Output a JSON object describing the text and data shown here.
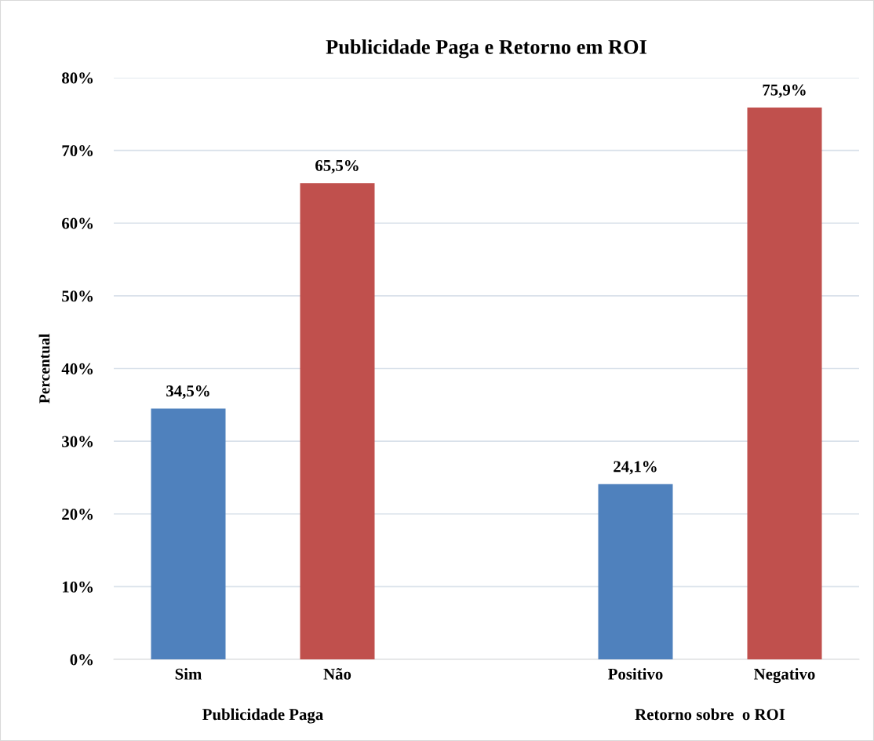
{
  "chart_data": {
    "type": "bar",
    "title": "Publicidade Paga e Retorno em ROI",
    "ylabel": "Percentual",
    "categories": [
      "Sim",
      "Não",
      null,
      "Positivo",
      "Negativo"
    ],
    "values": [
      34.5,
      65.5,
      null,
      24.1,
      75.9
    ],
    "colors": [
      "#4f81bd",
      "#c0504d",
      null,
      "#4f81bd",
      "#c0504d"
    ],
    "value_labels": [
      "34,5%",
      "65,5%",
      null,
      "24,1%",
      "75,9%"
    ],
    "annotations": [
      "Publicidade Paga",
      "Retorno sobre  o ROI"
    ],
    "ylim": [
      0,
      80
    ],
    "yticks": [
      {
        "value": 0,
        "label": "0%"
      },
      {
        "value": 10,
        "label": "10%"
      },
      {
        "value": 20,
        "label": "20%"
      },
      {
        "value": 30,
        "label": "30%"
      },
      {
        "value": 40,
        "label": "40%"
      },
      {
        "value": 50,
        "label": "50%"
      },
      {
        "value": 60,
        "label": "60%"
      },
      {
        "value": 70,
        "label": "70%"
      },
      {
        "value": 80,
        "label": "80%"
      }
    ],
    "grid": "y",
    "legend": false
  }
}
